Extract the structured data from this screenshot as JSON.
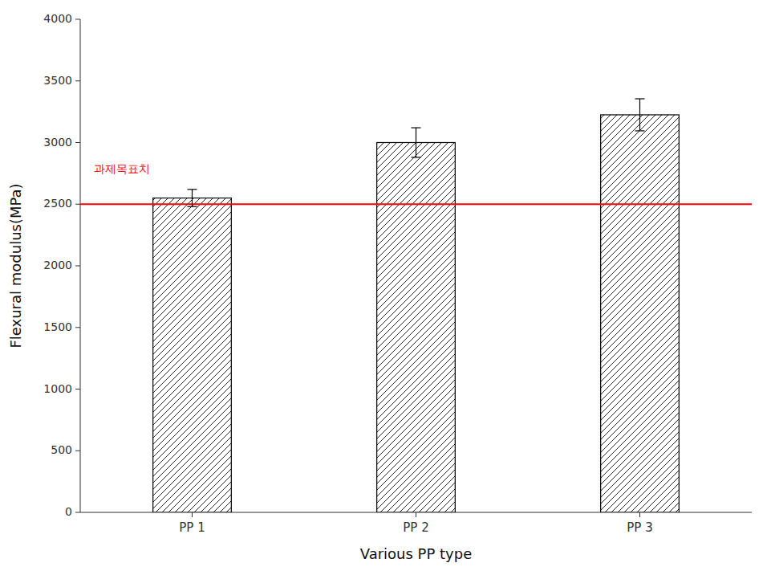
{
  "chart_data": {
    "type": "bar",
    "x_label": "Various PP type",
    "y_label": "Flexural modulus(MPa)",
    "categories": [
      "PP 1",
      "PP 2",
      "PP 3"
    ],
    "values": [
      2550,
      3000,
      3225
    ],
    "errors": [
      70,
      120,
      130
    ],
    "color": "#ffffff",
    "ylim": [
      0,
      4000
    ],
    "yticks": [
      0,
      500,
      1000,
      1500,
      2000,
      2500,
      3000,
      3500,
      4000
    ],
    "grid": false,
    "reference_lines": [
      {
        "y": 2500,
        "color": "#ff0000"
      }
    ],
    "annotations": [
      {
        "text": "과제목표치",
        "y": 2780,
        "color": "#ff0000"
      }
    ]
  }
}
